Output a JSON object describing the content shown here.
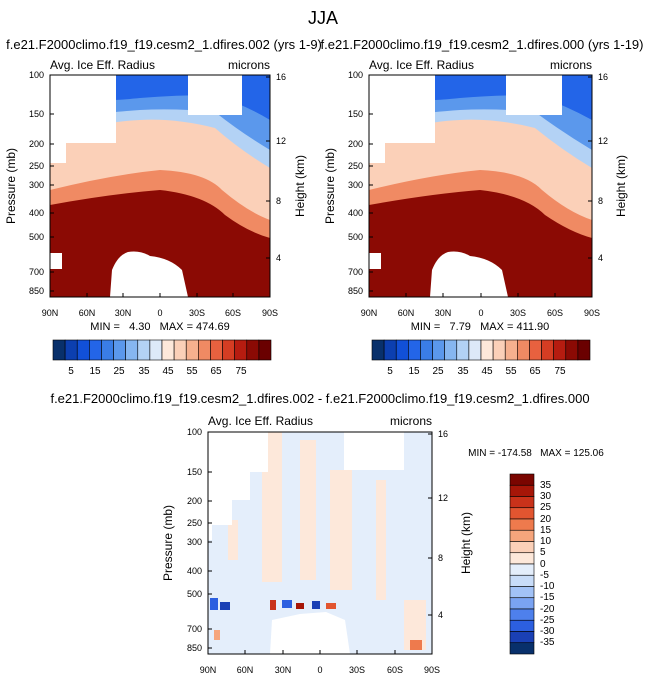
{
  "figure": {
    "title": "JJA"
  },
  "colors": {
    "colormap": [
      "#08306b",
      "#0c3fb0",
      "#1150d8",
      "#2365e8",
      "#3a7de6",
      "#5b98ec",
      "#86b6f0",
      "#b3d2f5",
      "#dde9f8",
      "#fde8da",
      "#fbd0b8",
      "#f6b08e",
      "#f08a63",
      "#e8613f",
      "#d53d23",
      "#b61c10",
      "#8b0a04",
      "#6a0000"
    ],
    "diffmap": [
      "#08306b",
      "#1a40b5",
      "#2c5fe0",
      "#4e80ec",
      "#7aa3f2",
      "#a2c2f6",
      "#c8dcf8",
      "#e4eefb",
      "#fde8da",
      "#fbd0b8",
      "#f6a57c",
      "#ee7a4d",
      "#e25530",
      "#c9321a",
      "#a61608",
      "#7a0500"
    ]
  },
  "chart_data": [
    {
      "type": "heatmap",
      "title": "f.e21.F2000climo.f19_f19.cesm2_1.dfires.002 (yrs 1-9)",
      "left_label": "Avg. Ice Eff. Radius",
      "right_label": "microns",
      "ylabel": "Pressure (mb)",
      "ylabel_right": "Height (km)",
      "y_log_scale": true,
      "x_ticks": [
        "90N",
        "60N",
        "30N",
        "0",
        "30S",
        "60S",
        "90S"
      ],
      "y_ticks": [
        "100",
        "150",
        "200",
        "250",
        "300",
        "400",
        "500",
        "700",
        "850"
      ],
      "y_ticks_right": [
        "16",
        "12",
        "8",
        "4"
      ],
      "stats": "MIN =   4.30   MAX = 474.69",
      "min": 4.3,
      "max": 474.69,
      "colorbar_labels": [
        "5",
        "15",
        "25",
        "35",
        "45",
        "55",
        "65",
        "75"
      ]
    },
    {
      "type": "heatmap",
      "title": "f.e21.F2000climo.f19_f19.cesm2_1.dfires.000 (yrs 1-19)",
      "left_label": "Avg. Ice Eff. Radius",
      "right_label": "microns",
      "ylabel": "Pressure (mb)",
      "ylabel_right": "Height (km)",
      "y_log_scale": true,
      "x_ticks": [
        "90N",
        "60N",
        "30N",
        "0",
        "30S",
        "60S",
        "90S"
      ],
      "y_ticks": [
        "100",
        "150",
        "200",
        "250",
        "300",
        "400",
        "500",
        "700",
        "850"
      ],
      "y_ticks_right": [
        "16",
        "12",
        "8",
        "4"
      ],
      "stats": "MIN =   7.79   MAX = 411.90",
      "min": 7.79,
      "max": 411.9,
      "colorbar_labels": [
        "5",
        "15",
        "25",
        "35",
        "45",
        "55",
        "65",
        "75"
      ]
    },
    {
      "type": "heatmap",
      "title": "f.e21.F2000climo.f19_f19.cesm2_1.dfires.002 - f.e21.F2000climo.f19_f19.cesm2_1.dfires.000",
      "left_label": "Avg. Ice Eff. Radius",
      "right_label": "microns",
      "ylabel": "Pressure (mb)",
      "ylabel_right": "Height (km)",
      "y_log_scale": true,
      "x_ticks": [
        "90N",
        "60N",
        "30N",
        "0",
        "30S",
        "60S",
        "90S"
      ],
      "y_ticks": [
        "100",
        "150",
        "200",
        "250",
        "300",
        "400",
        "500",
        "700",
        "850"
      ],
      "y_ticks_right": [
        "16",
        "12",
        "8",
        "4"
      ],
      "stats": "MIN = -174.58   MAX = 125.06",
      "min": -174.58,
      "max": 125.06,
      "colorbar_labels": [
        "35",
        "30",
        "25",
        "20",
        "15",
        "10",
        "5",
        "0",
        "-5",
        "-10",
        "-15",
        "-20",
        "-25",
        "-30",
        "-35"
      ]
    }
  ]
}
